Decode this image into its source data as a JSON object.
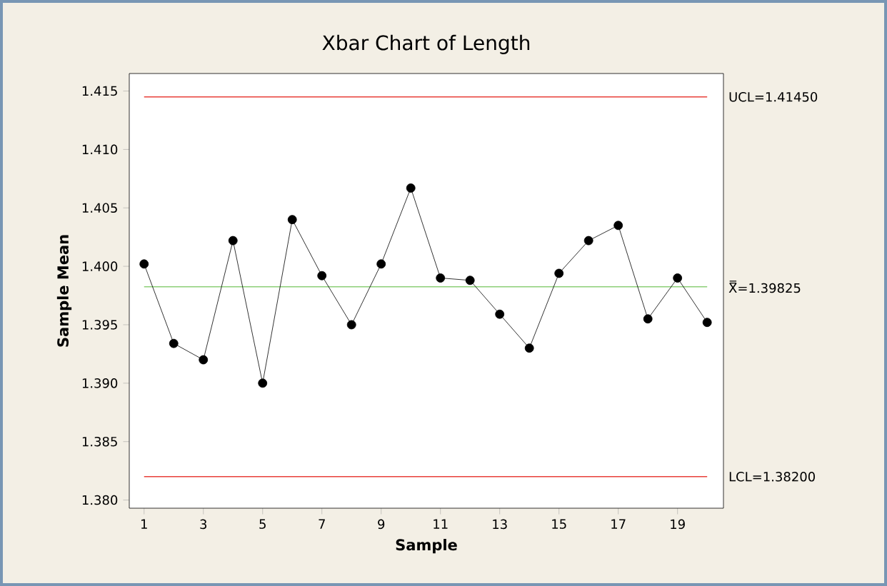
{
  "chart_data": {
    "type": "line",
    "title": "Xbar Chart of Length",
    "xlabel": "Sample",
    "ylabel": "Sample Mean",
    "x": [
      1,
      2,
      3,
      4,
      5,
      6,
      7,
      8,
      9,
      10,
      11,
      12,
      13,
      14,
      15,
      16,
      17,
      18,
      19,
      20
    ],
    "series": [
      {
        "color": "#000000",
        "values": [
          1.4002,
          1.3934,
          1.392,
          1.4022,
          1.39,
          1.404,
          1.3992,
          1.395,
          1.4002,
          1.4067,
          1.399,
          1.3988,
          1.3959,
          1.393,
          1.3994,
          1.4022,
          1.4035,
          1.3955,
          1.399,
          1.3952
        ]
      }
    ],
    "xlim": [
      0.5,
      20.55
    ],
    "ylim": [
      1.3793,
      1.4165
    ],
    "xticks": [
      1,
      3,
      5,
      7,
      9,
      11,
      13,
      15,
      17,
      19
    ],
    "yticks": [
      {
        "value": 1.38,
        "label": "1.380"
      },
      {
        "value": 1.385,
        "label": "1.385"
      },
      {
        "value": 1.39,
        "label": "1.390"
      },
      {
        "value": 1.395,
        "label": "1.395"
      },
      {
        "value": 1.4,
        "label": "1.400"
      },
      {
        "value": 1.405,
        "label": "1.405"
      },
      {
        "value": 1.41,
        "label": "1.410"
      },
      {
        "value": 1.415,
        "label": "1.415"
      }
    ],
    "ref_lines": [
      {
        "axis": "y",
        "value": 1.4145,
        "label": "UCL=1.41450",
        "color": "#e8403a"
      },
      {
        "axis": "y",
        "value": 1.39825,
        "label": "X̿=1.39825",
        "color": "#8ccf78"
      },
      {
        "axis": "y",
        "value": 1.382,
        "label": "LCL=1.38200",
        "color": "#e8403a"
      }
    ],
    "marker": "circle",
    "line_style": "solid",
    "grid": false
  }
}
